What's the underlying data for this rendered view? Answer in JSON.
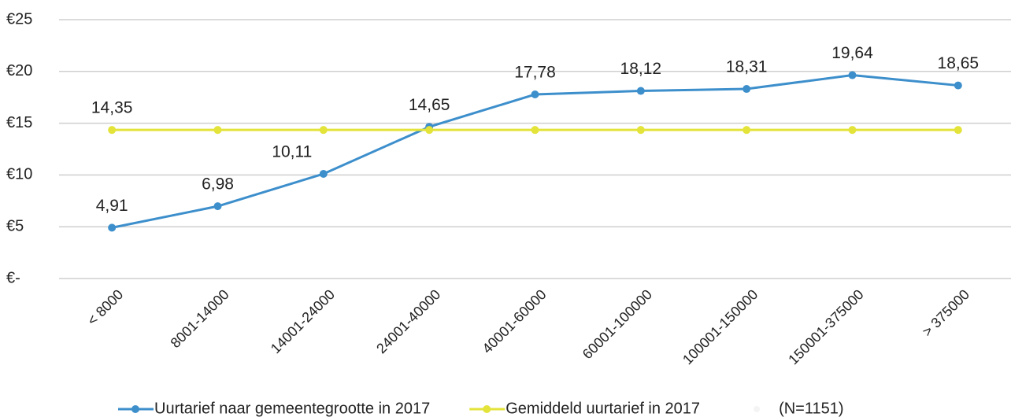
{
  "chart_data": {
    "type": "line",
    "categories": [
      "< 8000",
      "8001-14000",
      "14001-24000",
      "24001-40000",
      "40001-60000",
      "60001-100000",
      "100001-150000",
      "150001-375000",
      "> 375000"
    ],
    "series": [
      {
        "name": "Uurtarief naar gemeentegrootte in 2017",
        "color": "#3d8fcc",
        "values": [
          4.91,
          6.98,
          10.11,
          14.65,
          17.78,
          18.12,
          18.31,
          19.64,
          18.65
        ],
        "value_labels": [
          "4,91",
          "6,98",
          "10,11",
          "14,65",
          "17,78",
          "18,12",
          "18,31",
          "19,64",
          "18,65"
        ]
      },
      {
        "name": "Gemiddeld uurtarief in 2017",
        "color": "#e3e33a",
        "values": [
          14.35,
          14.35,
          14.35,
          14.35,
          14.35,
          14.35,
          14.35,
          14.35,
          14.35
        ],
        "value_labels": [
          "14,35",
          null,
          null,
          null,
          null,
          null,
          null,
          null,
          null
        ]
      }
    ],
    "note": "(N=1151)",
    "ylim": [
      0,
      25
    ],
    "yticks": [
      {
        "value": 0,
        "label": "€-"
      },
      {
        "value": 5,
        "label": "€5"
      },
      {
        "value": 10,
        "label": "€10"
      },
      {
        "value": 15,
        "label": "€15"
      },
      {
        "value": 20,
        "label": "€20"
      },
      {
        "value": 25,
        "label": "€25"
      }
    ],
    "grid": true
  }
}
